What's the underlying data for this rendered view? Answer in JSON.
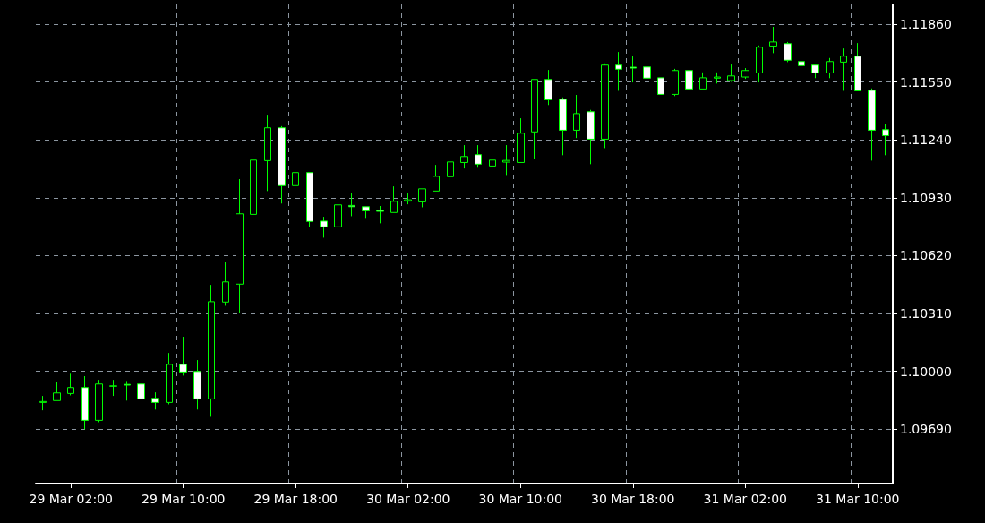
{
  "chart_data": {
    "type": "candlestick",
    "color": "#00ff00",
    "categories": [
      null,
      null,
      "29 Mar 02:00",
      null,
      null,
      null,
      null,
      null,
      null,
      null,
      "29 Mar 10:00",
      null,
      null,
      null,
      null,
      null,
      null,
      null,
      "29 Mar 18:00",
      null,
      null,
      null,
      null,
      null,
      null,
      null,
      "30 Mar 02:00",
      null,
      null,
      null,
      null,
      null,
      null,
      null,
      "30 Mar 10:00",
      null,
      null,
      null,
      null,
      null,
      null,
      null,
      "30 Mar 18:00",
      null,
      null,
      null,
      null,
      null,
      null,
      null,
      "31 Mar 02:00",
      null,
      null,
      null,
      null,
      null,
      null,
      null,
      "31 Mar 10:00",
      null,
      null
    ],
    "ohlc": [
      [
        1.09833,
        1.09868,
        1.09791,
        1.09838
      ],
      [
        1.09843,
        1.09945,
        1.09843,
        1.09884
      ],
      [
        1.09881,
        1.09987,
        1.09871,
        1.09913
      ],
      [
        1.09913,
        1.09974,
        1.09689,
        1.09737
      ],
      [
        1.09737,
        1.09954,
        1.09727,
        1.09932
      ],
      [
        1.0992,
        1.09954,
        1.09868,
        1.09922
      ],
      [
        1.0993,
        1.09948,
        1.09843,
        1.09926
      ],
      [
        1.09932,
        1.09983,
        1.09852,
        1.09852
      ],
      [
        1.09855,
        1.09887,
        1.09795,
        1.09833
      ],
      [
        1.09833,
        1.10098,
        1.09823,
        1.10037
      ],
      [
        1.10037,
        1.10185,
        1.09977,
        1.09996
      ],
      [
        1.09999,
        1.1006,
        1.09795,
        1.09852
      ],
      [
        1.09852,
        1.10463,
        1.09756,
        1.10373
      ],
      [
        1.10371,
        1.10588,
        1.10351,
        1.10479
      ],
      [
        1.10467,
        1.1103,
        1.10313,
        1.10844
      ],
      [
        1.10841,
        1.11289,
        1.10783,
        1.11132
      ],
      [
        1.11129,
        1.11375,
        1.10966,
        1.11305
      ],
      [
        1.11305,
        1.11314,
        1.10899,
        1.10995
      ],
      [
        1.10995,
        1.11174,
        1.10972,
        1.11065
      ],
      [
        1.11065,
        1.11065,
        1.10774,
        1.10803
      ],
      [
        1.10805,
        1.10828,
        1.10716,
        1.10774
      ],
      [
        1.10774,
        1.10914,
        1.10735,
        1.10892
      ],
      [
        1.10889,
        1.10953,
        1.10831,
        1.10882
      ],
      [
        1.10882,
        1.10882,
        1.10822,
        1.1086
      ],
      [
        1.10862,
        1.10886,
        1.10793,
        1.10857
      ],
      [
        1.10851,
        1.10991,
        1.10851,
        1.10911
      ],
      [
        1.10912,
        1.10953,
        1.10895,
        1.10919
      ],
      [
        1.10908,
        1.10978,
        1.10879,
        1.10978
      ],
      [
        1.10966,
        1.11106,
        1.10966,
        1.11045
      ],
      [
        1.11043,
        1.11164,
        1.11004,
        1.11122
      ],
      [
        1.11119,
        1.11212,
        1.11087,
        1.11151
      ],
      [
        1.11161,
        1.11212,
        1.11091,
        1.1111
      ],
      [
        1.111,
        1.11132,
        1.11071,
        1.11132
      ],
      [
        1.11121,
        1.11212,
        1.11052,
        1.1113
      ],
      [
        1.11119,
        1.11356,
        1.11119,
        1.11276
      ],
      [
        1.11283,
        1.11564,
        1.11139,
        1.11564
      ],
      [
        1.11564,
        1.11615,
        1.11427,
        1.11455
      ],
      [
        1.11458,
        1.11468,
        1.11158,
        1.11292
      ],
      [
        1.11292,
        1.11481,
        1.1125,
        1.11381
      ],
      [
        1.11391,
        1.11401,
        1.1111,
        1.11244
      ],
      [
        1.11244,
        1.1165,
        1.11196,
        1.11641
      ],
      [
        1.11641,
        1.11711,
        1.11503,
        1.11619
      ],
      [
        1.1163,
        1.11689,
        1.11548,
        1.11625
      ],
      [
        1.11631,
        1.1165,
        1.11513,
        1.11571
      ],
      [
        1.11573,
        1.11573,
        1.11484,
        1.11484
      ],
      [
        1.11484,
        1.11621,
        1.11475,
        1.11612
      ],
      [
        1.11612,
        1.11631,
        1.11513,
        1.11513
      ],
      [
        1.11513,
        1.11602,
        1.11513,
        1.11573
      ],
      [
        1.11571,
        1.11602,
        1.11542,
        1.11577
      ],
      [
        1.11558,
        1.11644,
        1.11551,
        1.11583
      ],
      [
        1.11577,
        1.11625,
        1.11567,
        1.11612
      ],
      [
        1.11599,
        1.11746,
        1.11548,
        1.11737
      ],
      [
        1.11743,
        1.11846,
        1.11705,
        1.11765
      ],
      [
        1.11756,
        1.11765,
        1.11657,
        1.11667
      ],
      [
        1.1166,
        1.11698,
        1.11609,
        1.11638
      ],
      [
        1.11641,
        1.11641,
        1.11571,
        1.11599
      ],
      [
        1.11599,
        1.11679,
        1.11571,
        1.1166
      ],
      [
        1.11657,
        1.1173,
        1.11503,
        1.11689
      ],
      [
        1.11689,
        1.11759,
        1.11503,
        1.11503
      ],
      [
        1.11506,
        1.11516,
        1.11129,
        1.11292
      ],
      [
        1.11295,
        1.11324,
        1.11158,
        1.11263
      ]
    ],
    "ylim": [
      1.09398,
      1.11966
    ],
    "yticks": [
      {
        "value": 1.0969,
        "label": "1.09690"
      },
      {
        "value": 1.1,
        "label": "1.10000"
      },
      {
        "value": 1.1031,
        "label": "1.10310"
      },
      {
        "value": 1.1062,
        "label": "1.10620"
      },
      {
        "value": 1.1093,
        "label": "1.10930"
      },
      {
        "value": 1.1124,
        "label": "1.11240"
      },
      {
        "value": 1.1155,
        "label": "1.11550"
      },
      {
        "value": 1.1186,
        "label": "1.11860"
      }
    ],
    "grid": true
  }
}
